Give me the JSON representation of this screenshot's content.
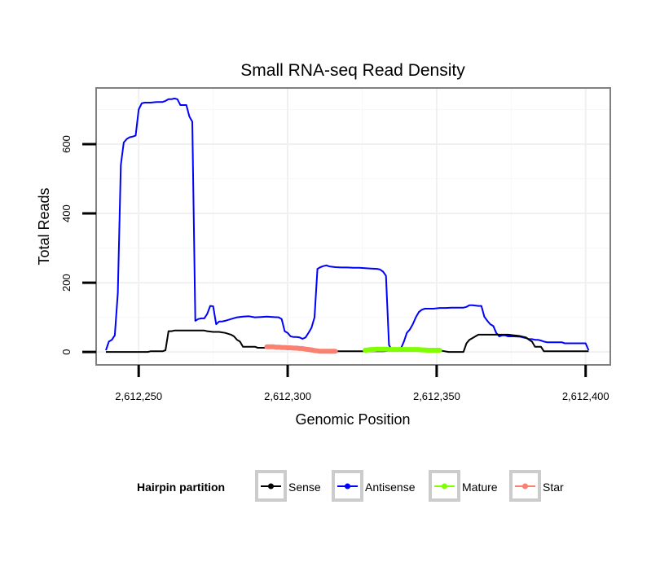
{
  "chart_data": {
    "type": "line",
    "title": "Small RNA-seq Read Density",
    "xlabel": "Genomic Position",
    "ylabel": "Total Reads",
    "xlim": [
      2612236,
      2612408
    ],
    "ylim": [
      -35,
      760
    ],
    "x_ticks": [
      2612250,
      2612300,
      2612350,
      2612400
    ],
    "x_tick_labels": [
      "2,612,250",
      "2,612,300",
      "2,612,350",
      "2,612,400"
    ],
    "y_ticks": [
      0,
      200,
      400,
      600
    ],
    "y_tick_labels": [
      "0",
      "200",
      "400",
      "600"
    ],
    "grid": true,
    "legend": {
      "title": "Hairpin partition",
      "position": "bottom",
      "items": [
        {
          "name": "Sense",
          "color": "#000000"
        },
        {
          "name": "Antisense",
          "color": "#0000ff"
        },
        {
          "name": "Mature",
          "color": "#7fff00"
        },
        {
          "name": "Star",
          "color": "#fa8072"
        }
      ]
    },
    "series": [
      {
        "name": "Antisense",
        "color": "#0000ff",
        "points": [
          [
            2612239,
            5
          ],
          [
            2612240,
            30
          ],
          [
            2612241,
            35
          ],
          [
            2612242,
            48
          ],
          [
            2612243,
            170
          ],
          [
            2612244,
            540
          ],
          [
            2612245,
            605
          ],
          [
            2612246,
            615
          ],
          [
            2612247,
            620
          ],
          [
            2612248,
            622
          ],
          [
            2612249,
            625
          ],
          [
            2612250,
            700
          ],
          [
            2612251,
            718
          ],
          [
            2612252,
            720
          ],
          [
            2612254,
            720
          ],
          [
            2612256,
            722
          ],
          [
            2612258,
            722
          ],
          [
            2612259,
            725
          ],
          [
            2612260,
            730
          ],
          [
            2612261,
            730
          ],
          [
            2612262,
            732
          ],
          [
            2612263,
            730
          ],
          [
            2612264,
            713
          ],
          [
            2612265,
            713
          ],
          [
            2612266,
            713
          ],
          [
            2612267,
            680
          ],
          [
            2612268,
            665
          ],
          [
            2612269,
            90
          ],
          [
            2612270,
            95
          ],
          [
            2612271,
            97
          ],
          [
            2612272,
            97
          ],
          [
            2612273,
            110
          ],
          [
            2612274,
            133
          ],
          [
            2612275,
            132
          ],
          [
            2612276,
            80
          ],
          [
            2612277,
            88
          ],
          [
            2612278,
            88
          ],
          [
            2612279,
            90
          ],
          [
            2612281,
            95
          ],
          [
            2612283,
            100
          ],
          [
            2612285,
            102
          ],
          [
            2612287,
            103
          ],
          [
            2612289,
            100
          ],
          [
            2612291,
            101
          ],
          [
            2612293,
            102
          ],
          [
            2612295,
            101
          ],
          [
            2612297,
            100
          ],
          [
            2612298,
            95
          ],
          [
            2612299,
            60
          ],
          [
            2612300,
            55
          ],
          [
            2612301,
            45
          ],
          [
            2612302,
            43
          ],
          [
            2612303,
            43
          ],
          [
            2612304,
            42
          ],
          [
            2612305,
            38
          ],
          [
            2612306,
            42
          ],
          [
            2612307,
            55
          ],
          [
            2612308,
            70
          ],
          [
            2612309,
            100
          ],
          [
            2612310,
            240
          ],
          [
            2612311,
            245
          ],
          [
            2612312,
            248
          ],
          [
            2612313,
            250
          ],
          [
            2612314,
            247
          ],
          [
            2612316,
            245
          ],
          [
            2612318,
            244
          ],
          [
            2612320,
            244
          ],
          [
            2612322,
            243
          ],
          [
            2612324,
            243
          ],
          [
            2612326,
            242
          ],
          [
            2612328,
            241
          ],
          [
            2612330,
            240
          ],
          [
            2612331,
            238
          ],
          [
            2612332,
            232
          ],
          [
            2612333,
            220
          ],
          [
            2612334,
            20
          ],
          [
            2612335,
            5
          ],
          [
            2612336,
            5
          ],
          [
            2612337,
            5
          ],
          [
            2612338,
            10
          ],
          [
            2612339,
            30
          ],
          [
            2612340,
            55
          ],
          [
            2612341,
            65
          ],
          [
            2612342,
            80
          ],
          [
            2612343,
            100
          ],
          [
            2612344,
            115
          ],
          [
            2612345,
            122
          ],
          [
            2612346,
            125
          ],
          [
            2612347,
            125
          ],
          [
            2612349,
            125
          ],
          [
            2612351,
            127
          ],
          [
            2612353,
            127
          ],
          [
            2612355,
            128
          ],
          [
            2612357,
            128
          ],
          [
            2612359,
            128
          ],
          [
            2612360,
            130
          ],
          [
            2612361,
            135
          ],
          [
            2612362,
            135
          ],
          [
            2612364,
            133
          ],
          [
            2612365,
            133
          ],
          [
            2612366,
            102
          ],
          [
            2612367,
            90
          ],
          [
            2612368,
            80
          ],
          [
            2612369,
            75
          ],
          [
            2612370,
            55
          ],
          [
            2612371,
            45
          ],
          [
            2612372,
            48
          ],
          [
            2612373,
            48
          ],
          [
            2612374,
            45
          ],
          [
            2612376,
            45
          ],
          [
            2612378,
            44
          ],
          [
            2612380,
            40
          ],
          [
            2612381,
            37
          ],
          [
            2612382,
            37
          ],
          [
            2612383,
            35
          ],
          [
            2612384,
            35
          ],
          [
            2612385,
            33
          ],
          [
            2612386,
            30
          ],
          [
            2612387,
            28
          ],
          [
            2612388,
            28
          ],
          [
            2612390,
            28
          ],
          [
            2612392,
            28
          ],
          [
            2612393,
            25
          ],
          [
            2612394,
            25
          ],
          [
            2612396,
            25
          ],
          [
            2612398,
            25
          ],
          [
            2612400,
            25
          ],
          [
            2612401,
            5
          ]
        ]
      },
      {
        "name": "Sense",
        "color": "#000000",
        "points": [
          [
            2612239,
            0
          ],
          [
            2612241,
            0
          ],
          [
            2612243,
            0
          ],
          [
            2612245,
            0
          ],
          [
            2612247,
            0
          ],
          [
            2612249,
            0
          ],
          [
            2612251,
            0
          ],
          [
            2612253,
            0
          ],
          [
            2612254,
            2
          ],
          [
            2612256,
            2
          ],
          [
            2612258,
            2
          ],
          [
            2612259,
            5
          ],
          [
            2612260,
            60
          ],
          [
            2612261,
            60
          ],
          [
            2612262,
            62
          ],
          [
            2612264,
            62
          ],
          [
            2612266,
            62
          ],
          [
            2612268,
            62
          ],
          [
            2612270,
            62
          ],
          [
            2612272,
            62
          ],
          [
            2612273,
            60
          ],
          [
            2612275,
            58
          ],
          [
            2612277,
            58
          ],
          [
            2612279,
            55
          ],
          [
            2612281,
            50
          ],
          [
            2612282,
            45
          ],
          [
            2612283,
            35
          ],
          [
            2612284,
            30
          ],
          [
            2612285,
            15
          ],
          [
            2612287,
            15
          ],
          [
            2612289,
            15
          ],
          [
            2612290,
            12
          ],
          [
            2612292,
            12
          ],
          [
            2612294,
            12
          ],
          [
            2612296,
            12
          ],
          [
            2612298,
            12
          ],
          [
            2612300,
            12
          ],
          [
            2612302,
            11
          ],
          [
            2612304,
            10
          ],
          [
            2612306,
            10
          ],
          [
            2612308,
            8
          ],
          [
            2612310,
            6
          ],
          [
            2612312,
            3
          ],
          [
            2612314,
            2
          ],
          [
            2612316,
            2
          ],
          [
            2612318,
            2
          ],
          [
            2612320,
            2
          ],
          [
            2612322,
            2
          ],
          [
            2612324,
            2
          ],
          [
            2612326,
            2
          ],
          [
            2612328,
            2
          ],
          [
            2612330,
            2
          ],
          [
            2612332,
            2
          ],
          [
            2612334,
            3
          ],
          [
            2612336,
            5
          ],
          [
            2612338,
            5
          ],
          [
            2612340,
            6
          ],
          [
            2612342,
            6
          ],
          [
            2612344,
            5
          ],
          [
            2612346,
            5
          ],
          [
            2612348,
            5
          ],
          [
            2612350,
            5
          ],
          [
            2612351,
            3
          ],
          [
            2612352,
            3
          ],
          [
            2612354,
            0
          ],
          [
            2612356,
            0
          ],
          [
            2612358,
            0
          ],
          [
            2612359,
            0
          ],
          [
            2612360,
            25
          ],
          [
            2612361,
            35
          ],
          [
            2612362,
            40
          ],
          [
            2612363,
            45
          ],
          [
            2612364,
            50
          ],
          [
            2612366,
            50
          ],
          [
            2612368,
            50
          ],
          [
            2612370,
            50
          ],
          [
            2612372,
            50
          ],
          [
            2612374,
            50
          ],
          [
            2612376,
            48
          ],
          [
            2612378,
            46
          ],
          [
            2612380,
            42
          ],
          [
            2612381,
            35
          ],
          [
            2612382,
            30
          ],
          [
            2612383,
            15
          ],
          [
            2612384,
            15
          ],
          [
            2612385,
            15
          ],
          [
            2612386,
            2
          ],
          [
            2612388,
            2
          ],
          [
            2612390,
            2
          ],
          [
            2612392,
            2
          ],
          [
            2612394,
            2
          ],
          [
            2612396,
            2
          ],
          [
            2612398,
            2
          ],
          [
            2612400,
            2
          ],
          [
            2612401,
            2
          ]
        ]
      },
      {
        "name": "Star",
        "color": "#fa8072",
        "points": [
          [
            2612293,
            15
          ],
          [
            2612294,
            15
          ],
          [
            2612295,
            15
          ],
          [
            2612296,
            14
          ],
          [
            2612297,
            14
          ],
          [
            2612298,
            13
          ],
          [
            2612299,
            13
          ],
          [
            2612300,
            12
          ],
          [
            2612301,
            12
          ],
          [
            2612302,
            11
          ],
          [
            2612303,
            11
          ],
          [
            2612304,
            10
          ],
          [
            2612305,
            10
          ],
          [
            2612306,
            8
          ],
          [
            2612307,
            7
          ],
          [
            2612308,
            6
          ],
          [
            2612309,
            4
          ],
          [
            2612310,
            3
          ],
          [
            2612311,
            2
          ],
          [
            2612312,
            2
          ],
          [
            2612313,
            2
          ],
          [
            2612314,
            2
          ],
          [
            2612315,
            2
          ],
          [
            2612316,
            2
          ]
        ]
      },
      {
        "name": "Mature",
        "color": "#7fff00",
        "points": [
          [
            2612326,
            5
          ],
          [
            2612327,
            6
          ],
          [
            2612328,
            7
          ],
          [
            2612329,
            7
          ],
          [
            2612330,
            8
          ],
          [
            2612331,
            8
          ],
          [
            2612332,
            8
          ],
          [
            2612333,
            8
          ],
          [
            2612334,
            7
          ],
          [
            2612335,
            7
          ],
          [
            2612336,
            7
          ],
          [
            2612337,
            7
          ],
          [
            2612338,
            7
          ],
          [
            2612339,
            7
          ],
          [
            2612340,
            7
          ],
          [
            2612341,
            7
          ],
          [
            2612342,
            7
          ],
          [
            2612343,
            7
          ],
          [
            2612344,
            7
          ],
          [
            2612345,
            6
          ],
          [
            2612346,
            6
          ],
          [
            2612347,
            5
          ],
          [
            2612348,
            5
          ],
          [
            2612349,
            5
          ],
          [
            2612350,
            5
          ],
          [
            2612351,
            5
          ]
        ]
      }
    ]
  }
}
